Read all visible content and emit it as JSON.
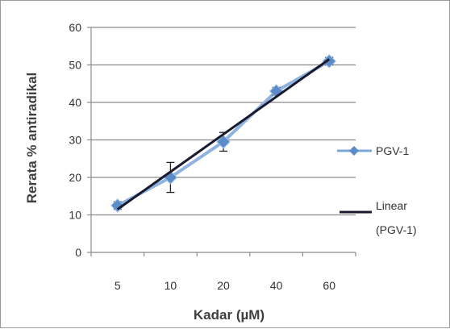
{
  "chart_data": {
    "type": "line",
    "title": "",
    "xlabel": "Kadar (µM)",
    "ylabel": "Rerata % antiradikal",
    "categories": [
      "5",
      "10",
      "20",
      "40",
      "60"
    ],
    "ylim": [
      0,
      60
    ],
    "yticks": [
      "0",
      "10",
      "20",
      "30",
      "40",
      "50",
      "60"
    ],
    "grid": true,
    "legend_position": "right",
    "series": [
      {
        "name": "PGV-1",
        "values": [
          12.5,
          20,
          29.5,
          43,
          51
        ],
        "error": [
          1,
          4,
          2.5,
          1,
          1
        ],
        "color": "#5b8cc8",
        "marker": "diamond"
      }
    ],
    "trendline": {
      "name": "Linear\n(PGV-1)",
      "label_lines": [
        "Linear",
        "(PGV-1)"
      ],
      "start": 11.5,
      "end": 51.5,
      "color": "#1a1a2e"
    }
  }
}
